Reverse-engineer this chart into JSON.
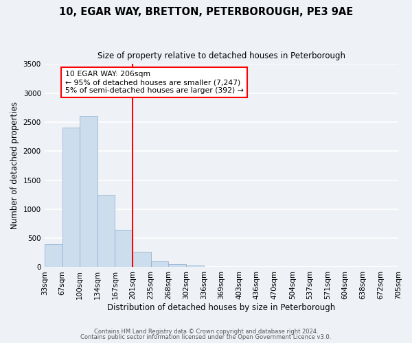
{
  "title": "10, EGAR WAY, BRETTON, PETERBOROUGH, PE3 9AE",
  "subtitle": "Size of property relative to detached houses in Peterborough",
  "xlabel": "Distribution of detached houses by size in Peterborough",
  "ylabel": "Number of detached properties",
  "bar_color": "#ccdded",
  "bar_edge_color": "#88aacc",
  "vline_x": 201,
  "vline_color": "red",
  "annotation_line1": "10 EGAR WAY: 206sqm",
  "annotation_line2": "← 95% of detached houses are smaller (7,247)",
  "annotation_line3": "5% of semi-detached houses are larger (392) →",
  "annotation_box_color": "white",
  "annotation_box_edge": "red",
  "bins": [
    33,
    67,
    100,
    134,
    167,
    201,
    235,
    268,
    302,
    336,
    369,
    403,
    436,
    470,
    504,
    537,
    571,
    604,
    638,
    672,
    705
  ],
  "bin_labels": [
    "33sqm",
    "67sqm",
    "100sqm",
    "134sqm",
    "167sqm",
    "201sqm",
    "235sqm",
    "268sqm",
    "302sqm",
    "336sqm",
    "369sqm",
    "403sqm",
    "436sqm",
    "470sqm",
    "504sqm",
    "537sqm",
    "571sqm",
    "604sqm",
    "638sqm",
    "672sqm",
    "705sqm"
  ],
  "counts": [
    400,
    2400,
    2600,
    1250,
    640,
    270,
    100,
    50,
    25,
    0,
    0,
    0,
    0,
    0,
    0,
    0,
    0,
    0,
    0,
    0
  ],
  "ylim": [
    0,
    3500
  ],
  "yticks": [
    0,
    500,
    1000,
    1500,
    2000,
    2500,
    3000,
    3500
  ],
  "footer_line1": "Contains HM Land Registry data © Crown copyright and database right 2024.",
  "footer_line2": "Contains public sector information licensed under the Open Government Licence v3.0.",
  "bg_color": "#eef2f7",
  "grid_color": "white"
}
